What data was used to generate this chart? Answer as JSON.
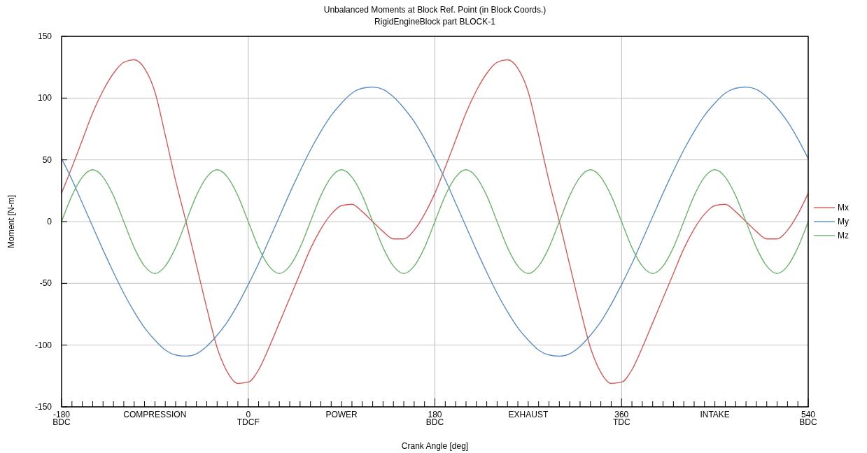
{
  "chart_data": {
    "type": "line",
    "title": "Unbalanced Moments at Block Ref. Point (in Block Coords.)",
    "subtitle": "RigidEngineBlock part BLOCK-1",
    "xlabel": "Crank Angle [deg]",
    "ylabel": "Moment [N-m]",
    "x": [
      -180,
      -170,
      -160,
      -150,
      -140,
      -130,
      -120,
      -110,
      -100,
      -90,
      -80,
      -70,
      -60,
      -50,
      -40,
      -30,
      -20,
      -10,
      0,
      10,
      20,
      30,
      40,
      50,
      60,
      70,
      80,
      90,
      100,
      110,
      120,
      130,
      140,
      150,
      160,
      170,
      180,
      190,
      200,
      210,
      220,
      230,
      240,
      250,
      260,
      270,
      280,
      290,
      300,
      310,
      320,
      330,
      340,
      350,
      360,
      370,
      380,
      390,
      400,
      410,
      420,
      430,
      440,
      450,
      460,
      470,
      480,
      490,
      500,
      510,
      520,
      530,
      540
    ],
    "series": [
      {
        "name": "Mx",
        "color": "#d45a5a",
        "values": [
          23,
          44,
          66,
          88,
          106,
          120,
          129,
          131,
          124,
          105,
          70,
          33,
          0,
          -35,
          -70,
          -102,
          -122,
          -131,
          -130,
          -120,
          -102,
          -82,
          -62,
          -42,
          -22,
          -6,
          6,
          13,
          14,
          8,
          0,
          -8,
          -14,
          -14,
          -7,
          6,
          23,
          44,
          66,
          88,
          106,
          120,
          129,
          131,
          124,
          105,
          70,
          33,
          0,
          -35,
          -70,
          -102,
          -122,
          -131,
          -130,
          -120,
          -102,
          -82,
          -62,
          -42,
          -22,
          -6,
          6,
          13,
          14,
          8,
          0,
          -8,
          -14,
          -14,
          -7,
          6,
          23
        ]
      },
      {
        "name": "My",
        "color": "#5b8ec4",
        "values": [
          51,
          34,
          15,
          -4,
          -23,
          -41,
          -58,
          -73,
          -86,
          -96,
          -104,
          -108,
          -109,
          -107,
          -101,
          -92,
          -81,
          -67,
          -51,
          -34,
          -15,
          4,
          23,
          41,
          58,
          73,
          86,
          96,
          104,
          108,
          109,
          107,
          101,
          92,
          81,
          67,
          51,
          34,
          15,
          -4,
          -23,
          -41,
          -58,
          -73,
          -86,
          -96,
          -104,
          -108,
          -109,
          -107,
          -101,
          -92,
          -81,
          -67,
          -51,
          -34,
          -15,
          4,
          23,
          41,
          58,
          73,
          86,
          96,
          104,
          108,
          109,
          107,
          101,
          92,
          81,
          67,
          51
        ]
      },
      {
        "name": "Mz",
        "color": "#6cb46c",
        "values": [
          0,
          21,
          36,
          42,
          36,
          21,
          0,
          -21,
          -36,
          -42,
          -36,
          -21,
          0,
          21,
          36,
          42,
          36,
          21,
          0,
          -21,
          -36,
          -42,
          -36,
          -21,
          0,
          21,
          36,
          42,
          36,
          21,
          0,
          -21,
          -36,
          -42,
          -36,
          -21,
          0,
          21,
          36,
          42,
          36,
          21,
          0,
          -21,
          -36,
          -42,
          -36,
          -21,
          0,
          21,
          36,
          42,
          36,
          21,
          0,
          -21,
          -36,
          -42,
          -36,
          -21,
          0,
          21,
          36,
          42,
          36,
          21,
          0,
          -21,
          -36,
          -42,
          -36,
          -21,
          0
        ]
      }
    ],
    "xlim": [
      -180,
      540
    ],
    "xticks": [
      {
        "value": -180,
        "label": "-180\nBDC"
      },
      {
        "value": -170,
        "label": null
      },
      {
        "value": -160,
        "label": null
      },
      {
        "value": -150,
        "label": null
      },
      {
        "value": -140,
        "label": null
      },
      {
        "value": -130,
        "label": null
      },
      {
        "value": -120,
        "label": null
      },
      {
        "value": -110,
        "label": null
      },
      {
        "value": -100,
        "label": null
      },
      {
        "value": -90,
        "label": "COMPRESSION"
      },
      {
        "value": -80,
        "label": null
      },
      {
        "value": -70,
        "label": null
      },
      {
        "value": -60,
        "label": null
      },
      {
        "value": -50,
        "label": null
      },
      {
        "value": -40,
        "label": null
      },
      {
        "value": -30,
        "label": null
      },
      {
        "value": -20,
        "label": null
      },
      {
        "value": -10,
        "label": null
      },
      {
        "value": 0,
        "label": "0\nTDCF"
      },
      {
        "value": 10,
        "label": null
      },
      {
        "value": 20,
        "label": null
      },
      {
        "value": 30,
        "label": null
      },
      {
        "value": 40,
        "label": null
      },
      {
        "value": 50,
        "label": null
      },
      {
        "value": 60,
        "label": null
      },
      {
        "value": 70,
        "label": null
      },
      {
        "value": 80,
        "label": null
      },
      {
        "value": 90,
        "label": "POWER"
      },
      {
        "value": 100,
        "label": null
      },
      {
        "value": 110,
        "label": null
      },
      {
        "value": 120,
        "label": null
      },
      {
        "value": 130,
        "label": null
      },
      {
        "value": 140,
        "label": null
      },
      {
        "value": 150,
        "label": null
      },
      {
        "value": 160,
        "label": null
      },
      {
        "value": 170,
        "label": null
      },
      {
        "value": 180,
        "label": "180\nBDC"
      },
      {
        "value": 190,
        "label": null
      },
      {
        "value": 200,
        "label": null
      },
      {
        "value": 210,
        "label": null
      },
      {
        "value": 220,
        "label": null
      },
      {
        "value": 230,
        "label": null
      },
      {
        "value": 240,
        "label": null
      },
      {
        "value": 250,
        "label": null
      },
      {
        "value": 260,
        "label": null
      },
      {
        "value": 270,
        "label": "EXHAUST"
      },
      {
        "value": 280,
        "label": null
      },
      {
        "value": 290,
        "label": null
      },
      {
        "value": 300,
        "label": null
      },
      {
        "value": 310,
        "label": null
      },
      {
        "value": 320,
        "label": null
      },
      {
        "value": 330,
        "label": null
      },
      {
        "value": 340,
        "label": null
      },
      {
        "value": 350,
        "label": null
      },
      {
        "value": 360,
        "label": "360\nTDC"
      },
      {
        "value": 370,
        "label": null
      },
      {
        "value": 380,
        "label": null
      },
      {
        "value": 390,
        "label": null
      },
      {
        "value": 400,
        "label": null
      },
      {
        "value": 410,
        "label": null
      },
      {
        "value": 420,
        "label": null
      },
      {
        "value": 430,
        "label": null
      },
      {
        "value": 440,
        "label": null
      },
      {
        "value": 450,
        "label": "INTAKE"
      },
      {
        "value": 460,
        "label": null
      },
      {
        "value": 470,
        "label": null
      },
      {
        "value": 480,
        "label": null
      },
      {
        "value": 490,
        "label": null
      },
      {
        "value": 500,
        "label": null
      },
      {
        "value": 510,
        "label": null
      },
      {
        "value": 520,
        "label": null
      },
      {
        "value": 530,
        "label": null
      },
      {
        "value": 540,
        "label": "540\nBDC"
      }
    ],
    "ylim": [
      -150,
      150
    ],
    "yticks": [
      -150,
      -100,
      -50,
      0,
      50,
      100,
      150
    ],
    "grid": "y",
    "ref_lines": [
      {
        "axis": "x",
        "value": 0,
        "color": "#b8b8b8"
      },
      {
        "axis": "x",
        "value": 180,
        "color": "#b8b8b8"
      },
      {
        "axis": "x",
        "value": 360,
        "color": "#b8b8b8"
      }
    ],
    "legend": "right",
    "marker": "none",
    "line_style": "solid"
  }
}
